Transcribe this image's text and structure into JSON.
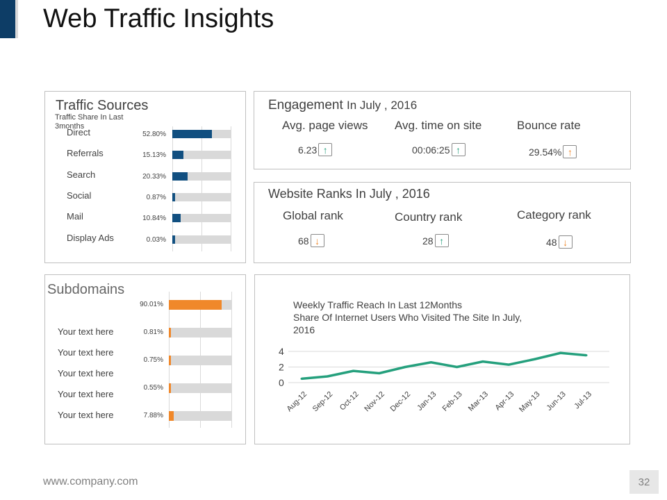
{
  "title": "Web Traffic Insights",
  "colors": {
    "accent": "#0d3d66",
    "blue_bar": "#114f80",
    "orange": "#f0882a",
    "green": "#25a07d",
    "track": "#d9d9d9"
  },
  "traffic_sources": {
    "title": "Traffic Sources",
    "subtitle_1": "Traffic Share In Last",
    "subtitle_2": "3months",
    "items": [
      {
        "label": "Direct",
        "pct": "52.80%",
        "value": 52.8
      },
      {
        "label": "Referrals",
        "pct": "15.13%",
        "value": 15.13
      },
      {
        "label": "Search",
        "pct": "20.33%",
        "value": 20.33
      },
      {
        "label": "Social",
        "pct": "0.87%",
        "value": 0.87
      },
      {
        "label": "Mail",
        "pct": "10.84%",
        "value": 10.84
      },
      {
        "label": "Display Ads",
        "pct": "0.03%",
        "value": 0.03
      }
    ]
  },
  "engagement": {
    "title": "Engagement",
    "title_suffix": "In July , 2016",
    "metrics": [
      {
        "label": "Avg. page views",
        "value": "6.23",
        "trend": "up",
        "icon": "arrow-up-icon",
        "color": "green"
      },
      {
        "label": "Avg. time on site",
        "value": "00:06:25",
        "trend": "up",
        "icon": "arrow-up-icon",
        "color": "green"
      },
      {
        "label": "Bounce rate",
        "value": "29.54%",
        "trend": "up",
        "icon": "arrow-up-icon",
        "color": "orange"
      }
    ]
  },
  "ranks": {
    "title": "Website Ranks In July , 2016",
    "metrics": [
      {
        "label": "Global rank",
        "value": "68",
        "trend": "down",
        "icon": "arrow-down-icon",
        "color": "orange"
      },
      {
        "label": "Country rank",
        "value": "28",
        "trend": "up",
        "icon": "arrow-up-icon",
        "color": "green"
      },
      {
        "label": "Category rank",
        "value": "48",
        "trend": "down",
        "icon": "arrow-down-icon",
        "color": "orange"
      }
    ]
  },
  "subdomains": {
    "title": "Subdomains",
    "items": [
      {
        "label": "",
        "pct": "90.01%",
        "value": 90.01
      },
      {
        "label": "Your text here",
        "pct": "0.81%",
        "value": 0.81
      },
      {
        "label": "Your text here",
        "pct": "0.75%",
        "value": 0.75
      },
      {
        "label": "Your text here",
        "pct": "0.55%",
        "value": 0.55
      },
      {
        "label": "Your text here",
        "pct": "7.88%",
        "value": 7.88
      }
    ],
    "extra_label": "Your text here"
  },
  "chart_data": {
    "type": "line",
    "title_1": "Weekly Traffic Reach In Last 12Months",
    "title_2": "Share Of Internet Users Who Visited The Site In July,",
    "title_3": "2016",
    "categories": [
      "Aug-12",
      "Sep-12",
      "Oct-12",
      "Nov-12",
      "Dec-12",
      "Jan-13",
      "Feb-13",
      "Mar-13",
      "Apr-13",
      "May-13",
      "Jun-13",
      "Jul-13"
    ],
    "values": [
      0.5,
      0.8,
      1.5,
      1.2,
      2.0,
      2.6,
      2.0,
      2.7,
      2.3,
      3.0,
      3.8,
      3.5
    ],
    "yticks": [
      "4",
      "2",
      "0"
    ],
    "ylim": [
      0,
      4
    ],
    "grid": true,
    "series_color": "#25a07d"
  },
  "footer": {
    "url": "www.company.com",
    "page": "32"
  }
}
